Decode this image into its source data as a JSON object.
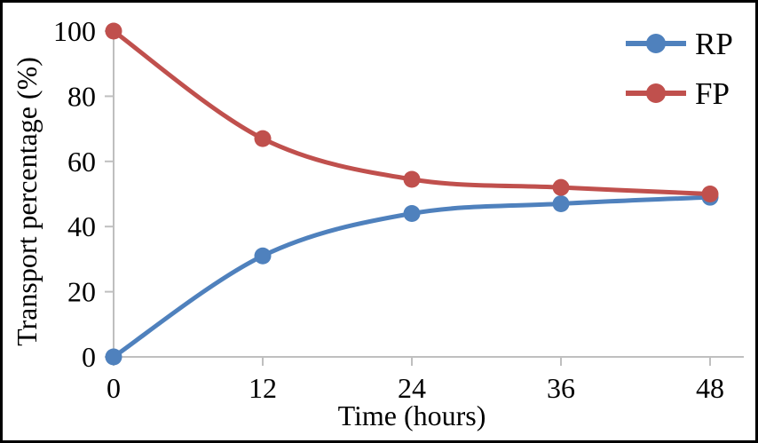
{
  "chart_data": {
    "type": "line",
    "title": "",
    "xlabel": "Time (hours)",
    "ylabel": "Transport percentage (%)",
    "x": [
      0,
      12,
      24,
      36,
      48
    ],
    "xlim": [
      0,
      48
    ],
    "ylim": [
      0,
      100
    ],
    "xticks": [
      0,
      12,
      24,
      36,
      48
    ],
    "yticks": [
      0,
      20,
      40,
      60,
      80,
      100
    ],
    "grid": false,
    "smooth_lines": true,
    "legend_position": "top-right",
    "axis_color": "#bfbfbf",
    "text_color": "#000000",
    "background_color": "#ffffff",
    "border_color": "#000000",
    "series": [
      {
        "name": "RP",
        "color": "#4f81bd",
        "values": [
          0,
          31,
          44,
          47,
          49
        ]
      },
      {
        "name": "FP",
        "color": "#c0504d",
        "values": [
          100,
          67,
          54.5,
          52,
          50
        ]
      }
    ]
  }
}
